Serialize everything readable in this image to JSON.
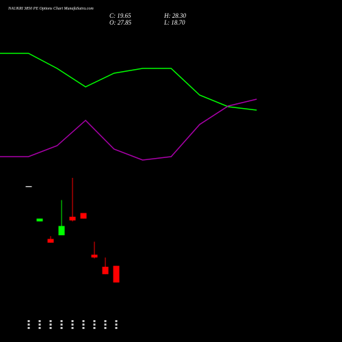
{
  "header": {
    "title": "NAUKRI 3850 PE Options Chart MunafaSutra.com",
    "close_text": "C: 19.65",
    "high_text": "H: 28.30",
    "open_text": "O: 27.85",
    "low_text": "L: 18.70"
  },
  "colors": {
    "background": "#000000",
    "up": "#00ff00",
    "down": "#ff0000",
    "green_line": "#00ff00",
    "purple_line": "#aa00aa",
    "text": "#ffffff"
  },
  "chart_data": {
    "type": "candlestick",
    "categories": [
      "",
      "",
      "",
      "",
      "",
      "",
      "",
      "",
      ""
    ],
    "candles": [
      {
        "open": 29.1,
        "high": 29.1,
        "low": 29.1,
        "close": 29.1
      },
      {
        "open": 25.3,
        "high": 25.6,
        "low": 25.3,
        "close": 25.6
      },
      {
        "open": 23.4,
        "high": 23.7,
        "low": 23.0,
        "close": 23.0
      },
      {
        "open": 23.8,
        "high": 27.6,
        "low": 23.8,
        "close": 24.8
      },
      {
        "open": 25.8,
        "high": 30.0,
        "low": 25.3,
        "close": 25.4
      },
      {
        "open": 26.2,
        "high": 26.2,
        "low": 25.6,
        "close": 25.6
      },
      {
        "open": 21.7,
        "high": 23.1,
        "low": 21.3,
        "close": 21.4
      },
      {
        "open": 20.4,
        "high": 21.4,
        "low": 19.6,
        "close": 19.6
      },
      {
        "open": 20.5,
        "high": 20.5,
        "low": 18.7,
        "close": 18.7
      }
    ],
    "line_series": [
      {
        "color": "green",
        "values": [
          78,
          78,
          100,
          127,
          107,
          100,
          100,
          139,
          156,
          161
        ]
      },
      {
        "color": "purple",
        "values": [
          229,
          229,
          213,
          176,
          218,
          234,
          229,
          182,
          155,
          145
        ]
      }
    ]
  }
}
